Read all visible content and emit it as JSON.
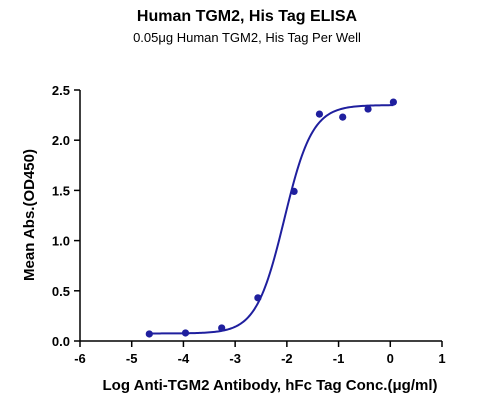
{
  "chart_data": {
    "type": "scatter",
    "title": "Human TGM2, His Tag ELISA",
    "subtitle": "0.05μg Human TGM2, His Tag Per Well",
    "xlabel": "Log Anti-TGM2 Antibody, hFc Tag Conc.(μg/ml)",
    "ylabel": "Mean Abs.(OD450)",
    "xlim": [
      -6,
      1
    ],
    "ylim": [
      0,
      2.5
    ],
    "x_ticks": [
      "-6",
      "-5",
      "-4",
      "-3",
      "-2",
      "-1",
      "0",
      "1"
    ],
    "y_ticks": [
      "0.0",
      "0.5",
      "1.0",
      "1.5",
      "2.0",
      "2.5"
    ],
    "grid": false,
    "series": [
      {
        "x": [
          -4.66,
          -3.96,
          -3.26,
          -2.56,
          -1.86,
          -1.37,
          -0.92,
          -0.43,
          0.06
        ],
        "y": [
          0.07,
          0.08,
          0.13,
          0.43,
          1.49,
          2.26,
          2.23,
          2.31,
          2.38
        ],
        "fit": {
          "model": "4PL",
          "bottom": 0.075,
          "top": 2.35,
          "log_ec50": -2.05,
          "hill_slope": 1.6
        }
      }
    ],
    "colors": {
      "series": "#1f1f9e",
      "axis": "#000000"
    }
  }
}
